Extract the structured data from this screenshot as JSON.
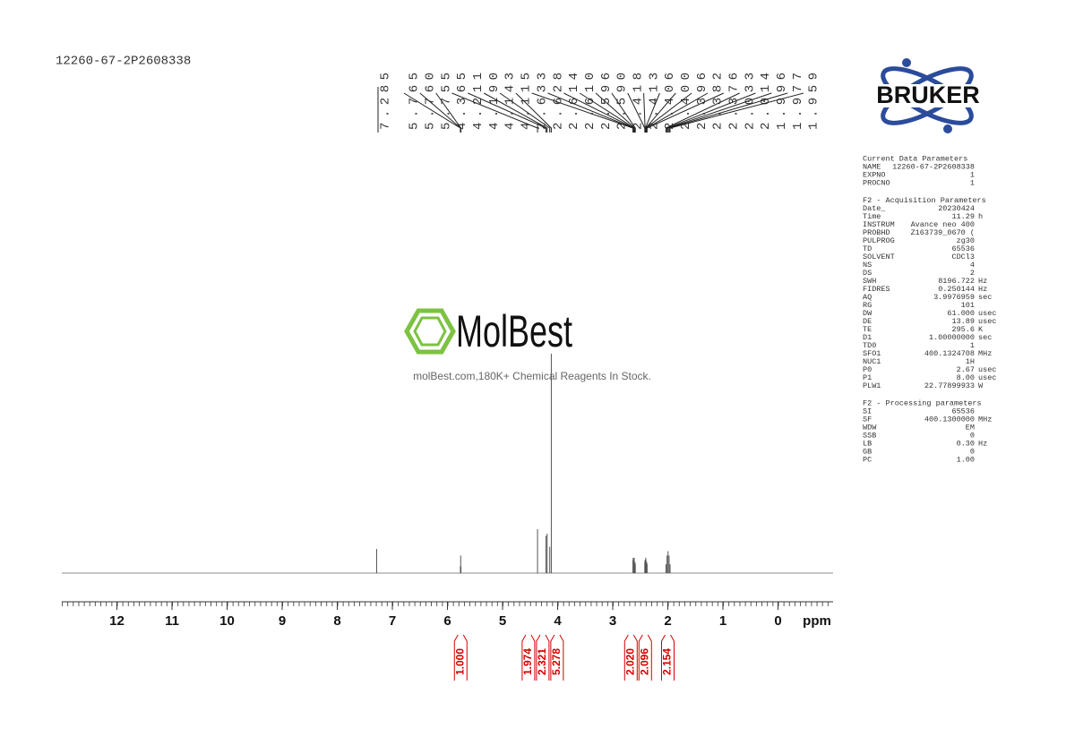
{
  "chart_data": {
    "type": "nmr",
    "title": "12260-67-2P2608338",
    "xlabel": "ppm",
    "xlim": [
      13,
      -1
    ],
    "xticks": [
      12,
      11,
      10,
      9,
      8,
      7,
      6,
      5,
      4,
      3,
      2,
      1,
      0
    ],
    "ylim": [
      0,
      100
    ],
    "color": "#555555",
    "integral_color": "#d40000",
    "peaks": {
      "x": [
        7.285,
        5.765,
        5.76,
        5.755,
        4.365,
        4.211,
        4.19,
        4.143,
        4.115,
        2.633,
        2.628,
        2.614,
        2.61,
        2.596,
        2.59,
        2.418,
        2.413,
        2.406,
        2.4,
        2.396,
        2.382,
        2.376,
        2.033,
        2.014,
        1.996,
        1.977,
        1.959
      ],
      "x_labels": [
        "7.285",
        "5.765",
        "5.760",
        "5.755",
        "4.365",
        "4.211",
        "4.190",
        "4.143",
        "4.115",
        "2.633",
        "2.628",
        "2.614",
        "2.610",
        "2.596",
        "2.590",
        "2.418",
        "2.413",
        "2.406",
        "2.400",
        "2.396",
        "2.382",
        "2.376",
        "2.033",
        "2.014",
        "1.996",
        "1.977",
        "1.959"
      ],
      "values": [
        11,
        3,
        8,
        3,
        20,
        17,
        18,
        12,
        100,
        6,
        7,
        6,
        7,
        5,
        4,
        5,
        6,
        6,
        7,
        6,
        5,
        4,
        4,
        8,
        10,
        8,
        4
      ]
    },
    "integrals": {
      "x": [
        5.76,
        4.53,
        4.27,
        4.01,
        2.67,
        2.41,
        2.0
      ],
      "values": [
        1,
        1.974,
        2.321,
        5.278,
        2.02,
        2.096,
        2.154
      ],
      "value_labels": [
        "1.000",
        "1.974",
        "2.321",
        "5.278",
        "2.020",
        "2.096",
        "2.154"
      ]
    }
  },
  "logo": "BRUKER",
  "watermark": {
    "brand": "MolBest",
    "tagline": "molBest.com,180K+ Chemical Reagents In Stock."
  },
  "parameters": [
    {
      "title": "Current Data Parameters",
      "rows": [
        [
          "NAME",
          "12260-67-2P2608338"
        ],
        [
          "EXPNO",
          "1"
        ],
        [
          "PROCNO",
          "1"
        ]
      ]
    },
    {
      "title": "F2 - Acquisition Parameters",
      "rows": [
        [
          "Date_",
          "20230424"
        ],
        [
          "Time",
          "11.29",
          "h"
        ],
        [
          "INSTRUM",
          "Avance neo 400"
        ],
        [
          "PROBHD",
          "Z163739_0670 ("
        ],
        [
          "PULPROG",
          "zg30"
        ],
        [
          "TD",
          "65536"
        ],
        [
          "SOLVENT",
          "CDCl3"
        ],
        [
          "NS",
          "4"
        ],
        [
          "DS",
          "2"
        ],
        [
          "SWH",
          "8196.722",
          "Hz"
        ],
        [
          "FIDRES",
          "0.250144",
          "Hz"
        ],
        [
          "AQ",
          "3.9976959",
          "sec"
        ],
        [
          "RG",
          "101"
        ],
        [
          "DW",
          "61.000",
          "usec"
        ],
        [
          "DE",
          "13.89",
          "usec"
        ],
        [
          "TE",
          "295.6",
          "K"
        ],
        [
          "D1",
          "1.00000000",
          "sec"
        ],
        [
          "TD0",
          "1"
        ],
        [
          "SFO1",
          "400.1324708",
          "MHz"
        ],
        [
          "NUC1",
          "1H"
        ],
        [
          "P0",
          "2.67",
          "usec"
        ],
        [
          "P1",
          "8.00",
          "usec"
        ],
        [
          "PLW1",
          "22.77899933",
          "W"
        ]
      ]
    },
    {
      "title": "F2 - Processing parameters",
      "rows": [
        [
          "SI",
          "65536"
        ],
        [
          "SF",
          "400.1300000",
          "MHz"
        ],
        [
          "WDW",
          "EM"
        ],
        [
          "SSB",
          "0"
        ],
        [
          "LB",
          "0.30",
          "Hz"
        ],
        [
          "GB",
          "0"
        ],
        [
          "PC",
          "1.00"
        ]
      ]
    }
  ]
}
